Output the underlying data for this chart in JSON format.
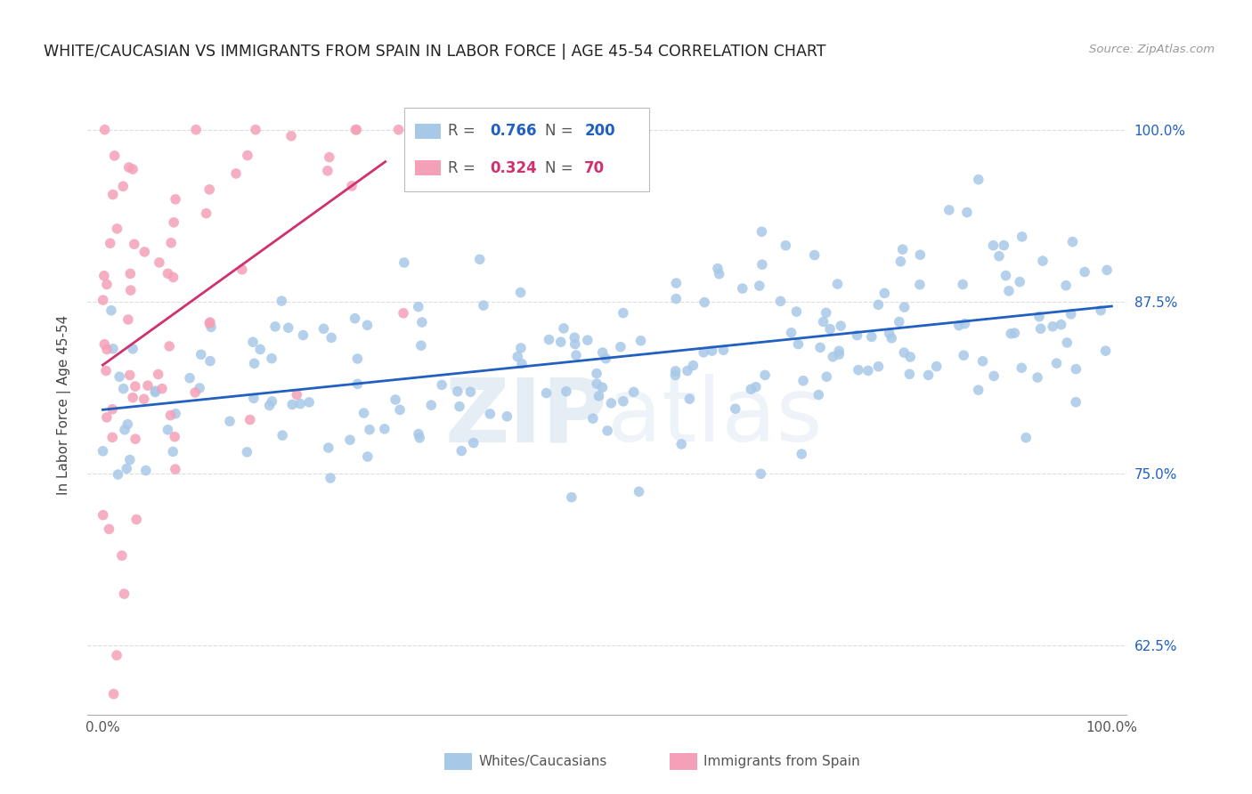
{
  "title": "WHITE/CAUCASIAN VS IMMIGRANTS FROM SPAIN IN LABOR FORCE | AGE 45-54 CORRELATION CHART",
  "source_text": "Source: ZipAtlas.com",
  "ylabel": "In Labor Force | Age 45-54",
  "watermark_zip": "ZIP",
  "watermark_atlas": "atlas",
  "blue_R": 0.766,
  "blue_N": 200,
  "pink_R": 0.324,
  "pink_N": 70,
  "blue_color": "#a8c8e8",
  "pink_color": "#f4a0b8",
  "blue_line_color": "#2060c0",
  "pink_line_color": "#d03070",
  "legend_label_blue": "Whites/Caucasians",
  "legend_label_pink": "Immigrants from Spain",
  "x_min": 0.0,
  "x_max": 1.0,
  "y_min": 0.575,
  "y_max": 1.025,
  "ytick_positions": [
    0.625,
    0.75,
    0.875,
    1.0
  ],
  "ytick_labels": [
    "62.5%",
    "75.0%",
    "87.5%",
    "100.0%"
  ],
  "xtick_positions": [
    0.0,
    1.0
  ],
  "xtick_labels": [
    "0.0%",
    "100.0%"
  ],
  "background_color": "#ffffff",
  "grid_color": "#dddddd",
  "title_fontsize": 12.5,
  "axis_label_fontsize": 11,
  "tick_fontsize": 11,
  "legend_fontsize": 13
}
